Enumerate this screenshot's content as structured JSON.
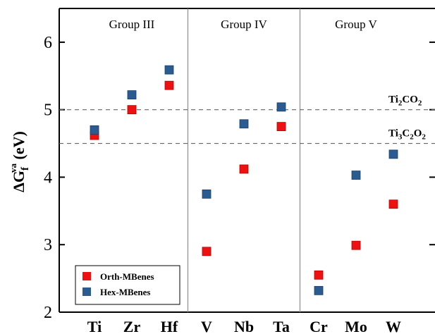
{
  "chart_data": {
    "type": "scatter",
    "categories": [
      "Ti",
      "Zr",
      "Hf",
      "V",
      "Nb",
      "Ta",
      "Cr",
      "Mo",
      "W"
    ],
    "groups": [
      "Group III",
      "Group IV",
      "Group V"
    ],
    "series": [
      {
        "name": "Orth-MBenes",
        "color": "#ee1111",
        "values": [
          4.62,
          5.0,
          5.36,
          2.9,
          4.12,
          4.75,
          2.55,
          2.99,
          3.6
        ]
      },
      {
        "name": "Hex-MBenes",
        "color": "#2b5c91",
        "values": [
          4.7,
          5.22,
          5.59,
          3.75,
          4.79,
          5.04,
          2.32,
          4.03,
          4.34
        ]
      }
    ],
    "reference_lines": [
      {
        "value": 5.0,
        "label_main": "Ti",
        "label_parts": [
          [
            "Ti",
            ""
          ],
          [
            "2",
            "sub"
          ],
          [
            "CO",
            ""
          ],
          [
            "2",
            "sub"
          ]
        ]
      },
      {
        "value": 4.5,
        "label_parts": [
          [
            "Ti",
            ""
          ],
          [
            "3",
            "sub"
          ],
          [
            "C",
            ""
          ],
          [
            "2",
            "sub"
          ],
          [
            "O",
            ""
          ],
          [
            "2",
            "sub"
          ]
        ]
      }
    ],
    "ylabel_main": "ΔG",
    "ylabel_sub": "f",
    "ylabel_sup": "va",
    "ylabel_unit": " (eV)",
    "ylim": [
      2,
      6.5
    ],
    "yticks": [
      "2",
      "3",
      "4",
      "5",
      "6"
    ],
    "legend_position": "bottom-left"
  }
}
